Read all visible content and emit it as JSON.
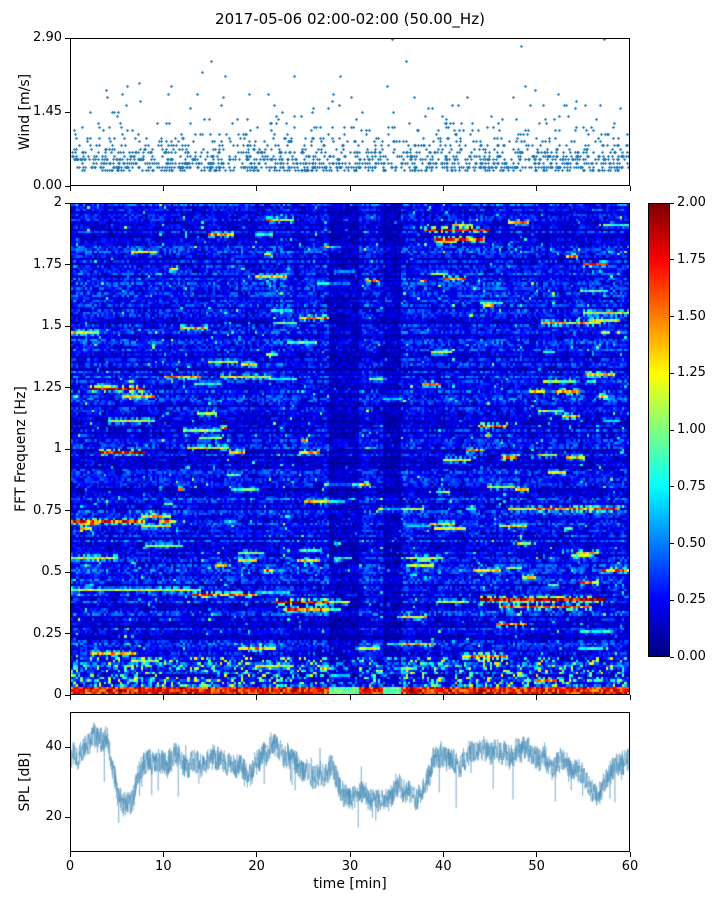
{
  "title": "2017-05-06 02:00-02:00 (50.00_Hz)",
  "colors": {
    "scatter": "#1f77b4",
    "spl_line": "#3f87b3",
    "axis": "#000000",
    "background": "#ffffff"
  },
  "chart_data": [
    {
      "type": "scatter",
      "name": "wind-speed",
      "ylabel": "Wind [m/s]",
      "xlim": [
        0,
        60
      ],
      "ylim": [
        0,
        2.9
      ],
      "ytick_labels": [
        "0.00",
        "1.45",
        "2.90"
      ],
      "ytick_values": [
        0,
        1.45,
        2.9
      ],
      "xtick_values": [
        0,
        10,
        20,
        30,
        40,
        50,
        60
      ],
      "marker": "plus",
      "point_count": 1500,
      "base_value": 0.29,
      "exp_scale": 0.34,
      "quantize_step": 0.0725,
      "max_value": 2.9
    },
    {
      "type": "heatmap",
      "name": "fft-spectrogram",
      "ylabel": "FFT Frequenz [Hz]",
      "xlim": [
        0,
        60
      ],
      "ylim": [
        0,
        2
      ],
      "ytick_labels": [
        "0",
        "0.25",
        "0.5",
        "0.75",
        "1",
        "1.25",
        "1.5",
        "1.75",
        "2"
      ],
      "ytick_values": [
        0,
        0.25,
        0.5,
        0.75,
        1,
        1.25,
        1.5,
        1.75,
        2
      ],
      "xtick_values": [
        0,
        10,
        20,
        30,
        40,
        50,
        60
      ],
      "colormap": "jet",
      "vmin": 0,
      "vmax": 2,
      "grid_cols": 240,
      "grid_rows": 200,
      "base_row_level": [
        0.1,
        0.32
      ],
      "dark_columns": [
        [
          27.8,
          31.0
        ],
        [
          33.6,
          35.4
        ]
      ],
      "baseline_band": {
        "freq_max": 0.025,
        "value": 2.0
      },
      "speckle_band": {
        "freq_max": 0.14,
        "value": 1.1
      },
      "streaks": [
        [
          38,
          45,
          1.9,
          1.9
        ],
        [
          39,
          44.5,
          1.86,
          1.6
        ],
        [
          0,
          3,
          1.48,
          1.25
        ],
        [
          50.5,
          57,
          1.52,
          1.3
        ],
        [
          55,
          60,
          1.56,
          1.2
        ],
        [
          2,
          8,
          1.25,
          1.9
        ],
        [
          5.5,
          9,
          1.22,
          1.3
        ],
        [
          10,
          14,
          1.3,
          1.4
        ],
        [
          16,
          21.5,
          1.3,
          1.2
        ],
        [
          4,
          9,
          1.12,
          1.1
        ],
        [
          12,
          16,
          1.08,
          1.0
        ],
        [
          3,
          8,
          0.98,
          1.8
        ],
        [
          12.5,
          17,
          1.0,
          1.2
        ],
        [
          40,
          43,
          0.95,
          1.2
        ],
        [
          22,
          30,
          0.37,
          1.9
        ],
        [
          23,
          29,
          0.34,
          1.5
        ],
        [
          44,
          57.5,
          0.38,
          2.0
        ],
        [
          46,
          56,
          0.35,
          1.5
        ],
        [
          50,
          59,
          0.75,
          1.5
        ],
        [
          0,
          8,
          0.7,
          1.6
        ],
        [
          25,
          29.5,
          0.78,
          1.3
        ],
        [
          33,
          38,
          0.75,
          1.1
        ],
        [
          13,
          20,
          0.4,
          1.5
        ],
        [
          0,
          14,
          0.42,
          1.1
        ],
        [
          57,
          60,
          0.5,
          1.6
        ],
        [
          0,
          5,
          0.55,
          1.2
        ],
        [
          36,
          40,
          0.55,
          1.1
        ],
        [
          8,
          12,
          0.6,
          1.0
        ],
        [
          18,
          22,
          0.18,
          1.4
        ],
        [
          34,
          39,
          0.2,
          1.3
        ],
        [
          42,
          47,
          0.15,
          1.5
        ],
        [
          2,
          7,
          0.16,
          1.3
        ]
      ],
      "random_streaks": {
        "count": 130,
        "value_range": [
          0.7,
          1.5
        ],
        "length_range": [
          0.5,
          3.5
        ]
      },
      "colorbar": {
        "tick_labels": [
          "0.00",
          "0.25",
          "0.50",
          "0.75",
          "1.00",
          "1.25",
          "1.50",
          "1.75",
          "2.00"
        ],
        "tick_values": [
          0,
          0.25,
          0.5,
          0.75,
          1,
          1.25,
          1.5,
          1.75,
          2
        ]
      }
    },
    {
      "type": "line",
      "name": "spl",
      "ylabel": "SPL [dB]",
      "xlabel": "time [min]",
      "xlim": [
        0,
        60
      ],
      "ylim": [
        10,
        50
      ],
      "ytick_labels": [
        "20",
        "40"
      ],
      "ytick_values": [
        20,
        40
      ],
      "xtick_labels": [
        "0",
        "10",
        "20",
        "30",
        "40",
        "50",
        "60"
      ],
      "xtick_values": [
        0,
        10,
        20,
        30,
        40,
        50,
        60
      ],
      "noise_amplitude": 3.5,
      "envelope": [
        [
          0,
          37
        ],
        [
          1,
          39
        ],
        [
          2,
          41
        ],
        [
          3,
          42
        ],
        [
          4,
          43
        ],
        [
          4.6,
          33
        ],
        [
          5,
          27
        ],
        [
          6,
          25
        ],
        [
          6.8,
          26
        ],
        [
          7.2,
          34
        ],
        [
          8,
          36
        ],
        [
          9,
          35
        ],
        [
          10,
          34
        ],
        [
          11,
          36
        ],
        [
          12,
          35
        ],
        [
          13,
          34
        ],
        [
          14,
          33
        ],
        [
          15,
          35
        ],
        [
          16,
          36
        ],
        [
          17,
          34
        ],
        [
          18,
          35
        ],
        [
          19,
          34
        ],
        [
          20,
          36
        ],
        [
          21,
          39
        ],
        [
          21.5,
          40
        ],
        [
          22,
          38
        ],
        [
          23,
          37
        ],
        [
          24,
          36
        ],
        [
          25,
          34
        ],
        [
          26,
          33
        ],
        [
          27,
          34
        ],
        [
          28,
          35
        ],
        [
          28.6,
          32
        ],
        [
          29,
          29
        ],
        [
          30,
          27
        ],
        [
          31,
          28
        ],
        [
          32,
          27
        ],
        [
          33,
          26
        ],
        [
          34,
          27
        ],
        [
          35,
          28
        ],
        [
          36,
          27
        ],
        [
          37,
          27
        ],
        [
          38,
          28
        ],
        [
          38.6,
          33
        ],
        [
          39,
          37
        ],
        [
          40,
          39
        ],
        [
          41,
          38
        ],
        [
          42,
          37
        ],
        [
          43,
          38
        ],
        [
          44,
          40
        ],
        [
          45,
          36
        ],
        [
          46,
          38
        ],
        [
          47,
          37
        ],
        [
          48,
          39
        ],
        [
          49,
          41
        ],
        [
          50,
          38
        ],
        [
          51,
          36
        ],
        [
          52,
          34
        ],
        [
          53,
          35
        ],
        [
          54,
          33
        ],
        [
          55,
          30
        ],
        [
          55.8,
          26
        ],
        [
          56.5,
          24
        ],
        [
          57.5,
          28
        ],
        [
          58,
          31
        ],
        [
          59,
          33
        ],
        [
          60,
          34
        ]
      ]
    }
  ]
}
